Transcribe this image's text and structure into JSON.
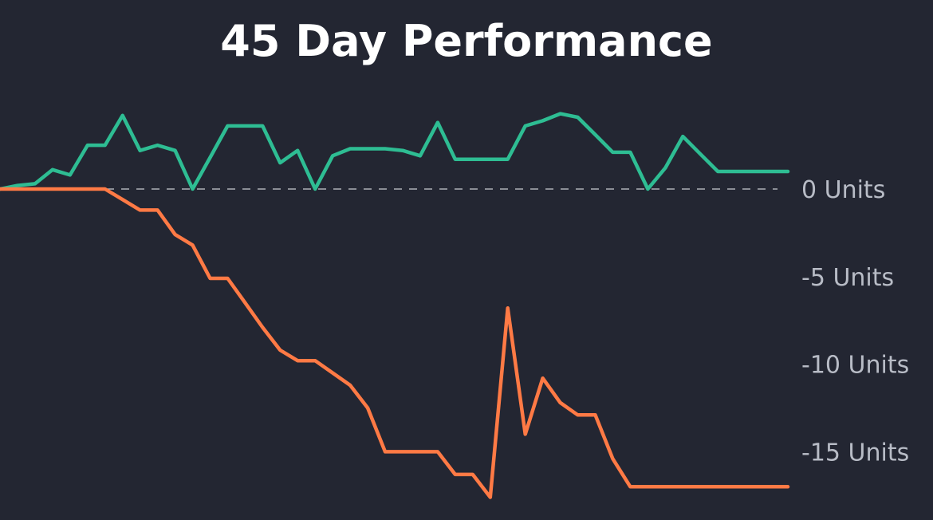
{
  "chart_data": {
    "type": "line",
    "title": "45 Day Performance",
    "xlabel": "",
    "ylabel": "",
    "x": [
      0,
      1,
      2,
      3,
      4,
      5,
      6,
      7,
      8,
      9,
      10,
      11,
      12,
      13,
      14,
      15,
      16,
      17,
      18,
      19,
      20,
      21,
      22,
      23,
      24,
      25,
      26,
      27,
      28,
      29,
      30,
      31,
      32,
      33,
      34,
      35,
      36,
      37,
      38,
      39,
      40,
      41,
      42,
      43,
      44,
      45
    ],
    "ylim": [
      -18,
      8
    ],
    "y_ticks": [
      {
        "value": 0,
        "label": "0 Units"
      },
      {
        "value": -5,
        "label": "-5 Units"
      },
      {
        "value": -10,
        "label": "-10 Units"
      },
      {
        "value": -15,
        "label": "-15 Units"
      }
    ],
    "zero_line": "dashed",
    "grid": false,
    "legend": "none",
    "series": [
      {
        "color": "#2ebd93",
        "values": [
          0,
          0.2,
          0.3,
          1.1,
          0.8,
          2.5,
          2.5,
          4.2,
          2.2,
          2.5,
          2.2,
          0,
          1.8,
          3.6,
          3.6,
          3.6,
          1.5,
          2.2,
          0,
          1.9,
          2.3,
          2.3,
          2.3,
          2.2,
          1.9,
          3.8,
          1.7,
          1.7,
          1.7,
          1.7,
          3.6,
          3.9,
          4.3,
          4.1,
          3.1,
          2.1,
          2.1,
          0,
          1.2,
          3.0,
          2.0,
          1.0,
          1.0,
          1.0,
          1.0,
          1.0
        ]
      },
      {
        "color": "#ff7a45",
        "values": [
          0,
          0,
          0,
          0,
          0,
          0,
          0,
          -0.6,
          -1.2,
          -1.2,
          -2.6,
          -3.2,
          -5.1,
          -5.1,
          -6.5,
          -7.9,
          -9.2,
          -9.8,
          -9.8,
          -10.5,
          -11.2,
          -12.5,
          -15.0,
          -15.0,
          -15.0,
          -15.0,
          -16.3,
          -16.3,
          -17.6,
          -6.8,
          -14.0,
          -10.8,
          -12.2,
          -12.9,
          -12.9,
          -15.4,
          -17.0,
          -17.0,
          -17.0,
          -17.0,
          -17.0,
          -17.0,
          -17.0,
          -17.0,
          -17.0,
          -17.0
        ]
      }
    ]
  }
}
